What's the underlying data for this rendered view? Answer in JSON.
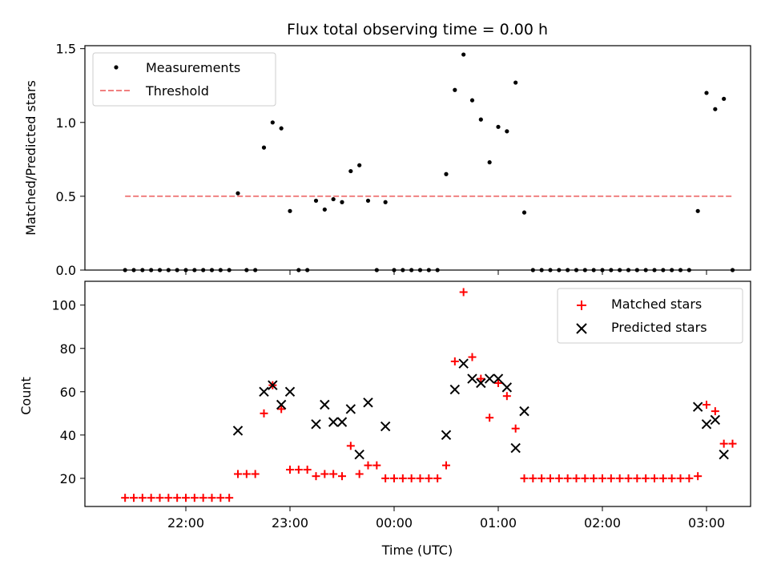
{
  "chart_data": {
    "type": "scatter",
    "title": "Flux total observing time = 0.00 h",
    "xlabel": "Time (UTC)",
    "x_tick_labels": [
      "22:00",
      "23:00",
      "00:00",
      "01:00",
      "02:00",
      "03:00"
    ],
    "colors": {
      "measurements": "#000000",
      "threshold": "#f08080",
      "matched": "#ff0000",
      "predicted": "#000000"
    },
    "panels": [
      {
        "name": "ratio",
        "ylabel": "Matched/Predicted stars",
        "ylim": [
          0,
          1.52
        ],
        "yticks": [
          "0.0",
          "0.5",
          "1.0",
          "1.5"
        ],
        "legend_position": "top-left",
        "series": [
          {
            "name": "Measurements",
            "marker": "dot",
            "points": [
              [
                "21:25",
                0
              ],
              [
                "21:30",
                0
              ],
              [
                "21:35",
                0
              ],
              [
                "21:40",
                0
              ],
              [
                "21:45",
                0
              ],
              [
                "21:50",
                0
              ],
              [
                "21:55",
                0
              ],
              [
                "22:00",
                0
              ],
              [
                "22:05",
                0
              ],
              [
                "22:10",
                0
              ],
              [
                "22:15",
                0
              ],
              [
                "22:20",
                0
              ],
              [
                "22:25",
                0
              ],
              [
                "22:30",
                0.52
              ],
              [
                "22:35",
                0
              ],
              [
                "22:40",
                0
              ],
              [
                "22:45",
                0.83
              ],
              [
                "22:50",
                1.0
              ],
              [
                "22:55",
                0.96
              ],
              [
                "23:00",
                0.4
              ],
              [
                "23:05",
                0
              ],
              [
                "23:10",
                0
              ],
              [
                "23:15",
                0.47
              ],
              [
                "23:20",
                0.41
              ],
              [
                "23:25",
                0.48
              ],
              [
                "23:30",
                0.46
              ],
              [
                "23:35",
                0.67
              ],
              [
                "23:40",
                0.71
              ],
              [
                "23:45",
                0.47
              ],
              [
                "23:50",
                0
              ],
              [
                "23:55",
                0.46
              ],
              [
                "00:00",
                0
              ],
              [
                "00:05",
                0
              ],
              [
                "00:10",
                0
              ],
              [
                "00:15",
                0
              ],
              [
                "00:20",
                0
              ],
              [
                "00:25",
                0
              ],
              [
                "00:30",
                0.65
              ],
              [
                "00:35",
                1.22
              ],
              [
                "00:40",
                1.46
              ],
              [
                "00:45",
                1.15
              ],
              [
                "00:50",
                1.02
              ],
              [
                "00:55",
                0.73
              ],
              [
                "01:00",
                0.97
              ],
              [
                "01:05",
                0.94
              ],
              [
                "01:10",
                1.27
              ],
              [
                "01:15",
                0.39
              ],
              [
                "01:20",
                0
              ],
              [
                "01:25",
                0
              ],
              [
                "01:30",
                0
              ],
              [
                "01:35",
                0
              ],
              [
                "01:40",
                0
              ],
              [
                "01:45",
                0
              ],
              [
                "01:50",
                0
              ],
              [
                "01:55",
                0
              ],
              [
                "02:00",
                0
              ],
              [
                "02:05",
                0
              ],
              [
                "02:10",
                0
              ],
              [
                "02:15",
                0
              ],
              [
                "02:20",
                0
              ],
              [
                "02:25",
                0
              ],
              [
                "02:30",
                0
              ],
              [
                "02:35",
                0
              ],
              [
                "02:40",
                0
              ],
              [
                "02:45",
                0
              ],
              [
                "02:50",
                0
              ],
              [
                "02:55",
                0.4
              ],
              [
                "03:00",
                1.2
              ],
              [
                "03:05",
                1.09
              ],
              [
                "03:10",
                1.16
              ],
              [
                "03:15",
                0
              ]
            ]
          },
          {
            "name": "Threshold",
            "style": "dashed-line",
            "x_range": [
              "21:25",
              "03:15"
            ],
            "value": 0.5
          }
        ]
      },
      {
        "name": "counts",
        "ylabel": "Count",
        "ylim": [
          7,
          111
        ],
        "yticks": [
          "20",
          "40",
          "60",
          "80",
          "100"
        ],
        "legend_position": "top-right",
        "series": [
          {
            "name": "Matched stars",
            "marker": "plus",
            "points": [
              [
                "21:25",
                11
              ],
              [
                "21:30",
                11
              ],
              [
                "21:35",
                11
              ],
              [
                "21:40",
                11
              ],
              [
                "21:45",
                11
              ],
              [
                "21:50",
                11
              ],
              [
                "21:55",
                11
              ],
              [
                "22:00",
                11
              ],
              [
                "22:05",
                11
              ],
              [
                "22:10",
                11
              ],
              [
                "22:15",
                11
              ],
              [
                "22:20",
                11
              ],
              [
                "22:25",
                11
              ],
              [
                "22:30",
                22
              ],
              [
                "22:35",
                22
              ],
              [
                "22:40",
                22
              ],
              [
                "22:45",
                50
              ],
              [
                "22:50",
                63
              ],
              [
                "22:55",
                52
              ],
              [
                "23:00",
                24
              ],
              [
                "23:05",
                24
              ],
              [
                "23:10",
                24
              ],
              [
                "23:15",
                21
              ],
              [
                "23:20",
                22
              ],
              [
                "23:25",
                22
              ],
              [
                "23:30",
                21
              ],
              [
                "23:35",
                35
              ],
              [
                "23:40",
                22
              ],
              [
                "23:45",
                26
              ],
              [
                "23:50",
                26
              ],
              [
                "23:55",
                20
              ],
              [
                "00:00",
                20
              ],
              [
                "00:05",
                20
              ],
              [
                "00:10",
                20
              ],
              [
                "00:15",
                20
              ],
              [
                "00:20",
                20
              ],
              [
                "00:25",
                20
              ],
              [
                "00:30",
                26
              ],
              [
                "00:35",
                74
              ],
              [
                "00:40",
                106
              ],
              [
                "00:45",
                76
              ],
              [
                "00:50",
                66
              ],
              [
                "00:55",
                48
              ],
              [
                "01:00",
                64
              ],
              [
                "01:05",
                58
              ],
              [
                "01:10",
                43
              ],
              [
                "01:15",
                20
              ],
              [
                "01:20",
                20
              ],
              [
                "01:25",
                20
              ],
              [
                "01:30",
                20
              ],
              [
                "01:35",
                20
              ],
              [
                "01:40",
                20
              ],
              [
                "01:45",
                20
              ],
              [
                "01:50",
                20
              ],
              [
                "01:55",
                20
              ],
              [
                "02:00",
                20
              ],
              [
                "02:05",
                20
              ],
              [
                "02:10",
                20
              ],
              [
                "02:15",
                20
              ],
              [
                "02:20",
                20
              ],
              [
                "02:25",
                20
              ],
              [
                "02:30",
                20
              ],
              [
                "02:35",
                20
              ],
              [
                "02:40",
                20
              ],
              [
                "02:45",
                20
              ],
              [
                "02:50",
                20
              ],
              [
                "02:55",
                21
              ],
              [
                "03:00",
                54
              ],
              [
                "03:05",
                51
              ],
              [
                "03:10",
                36
              ],
              [
                "03:15",
                36
              ]
            ]
          },
          {
            "name": "Predicted stars",
            "marker": "x",
            "points": [
              [
                "22:30",
                42
              ],
              [
                "22:45",
                60
              ],
              [
                "22:50",
                63
              ],
              [
                "22:55",
                54
              ],
              [
                "23:00",
                60
              ],
              [
                "23:15",
                45
              ],
              [
                "23:20",
                54
              ],
              [
                "23:25",
                46
              ],
              [
                "23:30",
                46
              ],
              [
                "23:35",
                52
              ],
              [
                "23:40",
                31
              ],
              [
                "23:45",
                55
              ],
              [
                "23:55",
                44
              ],
              [
                "00:30",
                40
              ],
              [
                "00:35",
                61
              ],
              [
                "00:40",
                73
              ],
              [
                "00:45",
                66
              ],
              [
                "00:50",
                64
              ],
              [
                "00:55",
                66
              ],
              [
                "01:00",
                66
              ],
              [
                "01:05",
                62
              ],
              [
                "01:10",
                34
              ],
              [
                "01:15",
                51
              ],
              [
                "02:55",
                53
              ],
              [
                "03:00",
                45
              ],
              [
                "03:05",
                47
              ],
              [
                "03:10",
                31
              ]
            ]
          }
        ]
      }
    ]
  }
}
